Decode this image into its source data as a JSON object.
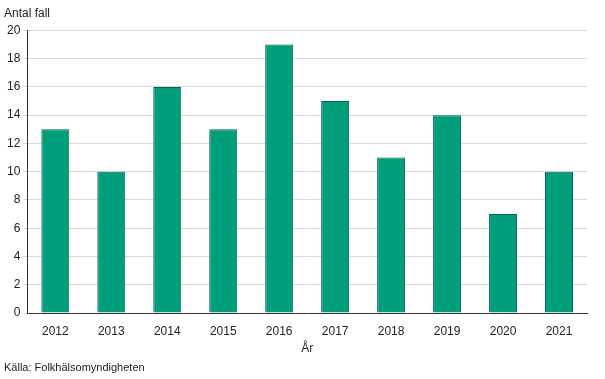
{
  "chart_data": {
    "type": "bar",
    "ylabel": "Antal fall",
    "xlabel": "År",
    "source": "Källa: Folkhälsomyndigheten",
    "categories": [
      "2012",
      "2013",
      "2014",
      "2015",
      "2016",
      "2017",
      "2018",
      "2019",
      "2020",
      "2021"
    ],
    "values": [
      13,
      10,
      16,
      13,
      19,
      15,
      11,
      14,
      7,
      10
    ],
    "color": "#009e7a",
    "ylim": [
      0,
      20
    ],
    "yticks": [
      0,
      2,
      4,
      6,
      8,
      10,
      12,
      14,
      16,
      18,
      20
    ],
    "grid": true
  }
}
